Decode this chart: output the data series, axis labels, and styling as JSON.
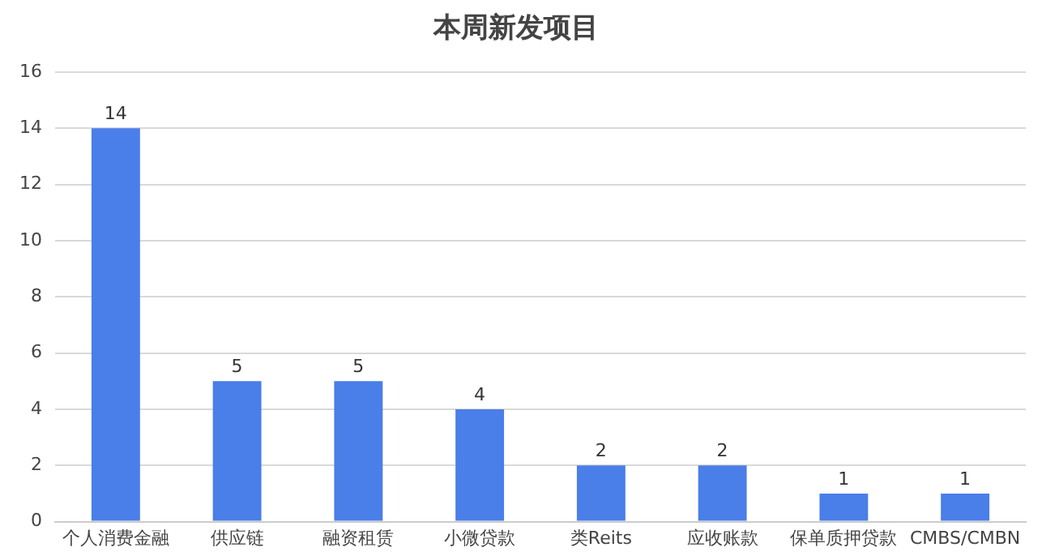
{
  "chart_data": {
    "type": "bar",
    "title": "本周新发项目",
    "categories": [
      "个人消费金融",
      "供应链",
      "融资租赁",
      "小微贷款",
      "类Reits",
      "应收账款",
      "保单质押贷款",
      "CMBS/CMBN"
    ],
    "values": [
      14,
      5,
      5,
      4,
      2,
      2,
      1,
      1
    ],
    "color": "#4a7ee8",
    "ylim": [
      0,
      16
    ],
    "yticks": [
      0,
      2,
      4,
      6,
      8,
      10,
      12,
      14,
      16
    ],
    "grid": "y",
    "data_labels": true,
    "legend": false
  }
}
